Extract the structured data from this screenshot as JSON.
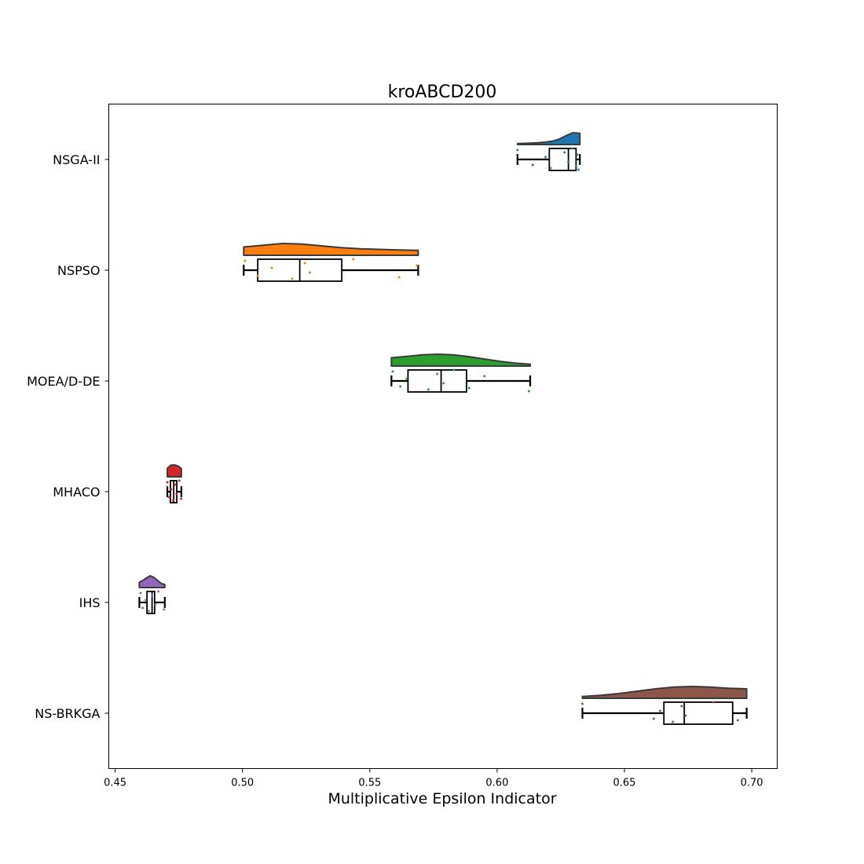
{
  "chart_data": {
    "type": "raincloud",
    "title": "kroABCD200",
    "xlabel": "Multiplicative Epsilon Indicator",
    "ylabel": "",
    "xlim": [
      0.4475,
      0.71
    ],
    "xticks": [
      "0.45",
      "0.50",
      "0.55",
      "0.60",
      "0.65",
      "0.70"
    ],
    "grid": false,
    "series": [
      {
        "name": "NSGA-II",
        "color": "#1f77b4",
        "box": {
          "min": 0.608,
          "q1": 0.6205,
          "median": 0.628,
          "q3": 0.631,
          "max": 0.6325
        },
        "points": [
          0.608,
          0.614,
          0.619,
          0.621,
          0.6265,
          0.628,
          0.6295,
          0.631,
          0.6315,
          0.632
        ],
        "density": [
          0.08,
          0.1,
          0.12,
          0.15,
          0.2,
          0.28,
          0.45,
          0.75,
          1.0,
          0.95
        ]
      },
      {
        "name": "NSPSO",
        "color": "#ff7f0e",
        "box": {
          "min": 0.5005,
          "q1": 0.506,
          "median": 0.5225,
          "q3": 0.539,
          "max": 0.569
        },
        "points": [
          0.501,
          0.506,
          0.5115,
          0.5195,
          0.5245,
          0.5265,
          0.5435,
          0.5615,
          0.5685
        ],
        "density": [
          0.7,
          0.85,
          1.0,
          0.95,
          0.8,
          0.65,
          0.55,
          0.5,
          0.45,
          0.42
        ]
      },
      {
        "name": "MOEA/D-DE",
        "color": "#2ca02c",
        "box": {
          "min": 0.5585,
          "q1": 0.565,
          "median": 0.578,
          "q3": 0.588,
          "max": 0.613
        },
        "points": [
          0.559,
          0.562,
          0.5645,
          0.573,
          0.5765,
          0.579,
          0.583,
          0.589,
          0.595,
          0.6125
        ],
        "density": [
          0.7,
          0.82,
          0.95,
          1.0,
          0.95,
          0.8,
          0.6,
          0.4,
          0.25,
          0.15
        ]
      },
      {
        "name": "MHACO",
        "color": "#d62728",
        "box": {
          "min": 0.4705,
          "q1": 0.4717,
          "median": 0.473,
          "q3": 0.4742,
          "max": 0.476
        },
        "points": [
          0.4705,
          0.4712,
          0.472,
          0.4728,
          0.4735,
          0.4741,
          0.4752,
          0.4759
        ],
        "density": [
          0.72,
          0.98,
          1.0,
          0.92,
          0.7
        ]
      },
      {
        "name": "IHS",
        "color": "#9467bd",
        "box": {
          "min": 0.4595,
          "q1": 0.4625,
          "median": 0.4645,
          "q3": 0.4655,
          "max": 0.4695
        },
        "points": [
          0.46,
          0.4608,
          0.462,
          0.4632,
          0.4645,
          0.4658,
          0.467,
          0.4692
        ],
        "density": [
          0.45,
          0.6,
          0.82,
          1.0,
          0.85,
          0.6,
          0.35,
          0.25
        ]
      },
      {
        "name": "NS-BRKGA",
        "color": "#8c564b",
        "box": {
          "min": 0.6335,
          "q1": 0.6655,
          "median": 0.6735,
          "q3": 0.6925,
          "max": 0.698
        },
        "points": [
          0.6335,
          0.6615,
          0.664,
          0.669,
          0.6725,
          0.674,
          0.685,
          0.6945
        ],
        "density": [
          0.15,
          0.25,
          0.4,
          0.6,
          0.8,
          0.95,
          1.0,
          0.95,
          0.85,
          0.8
        ]
      }
    ]
  }
}
